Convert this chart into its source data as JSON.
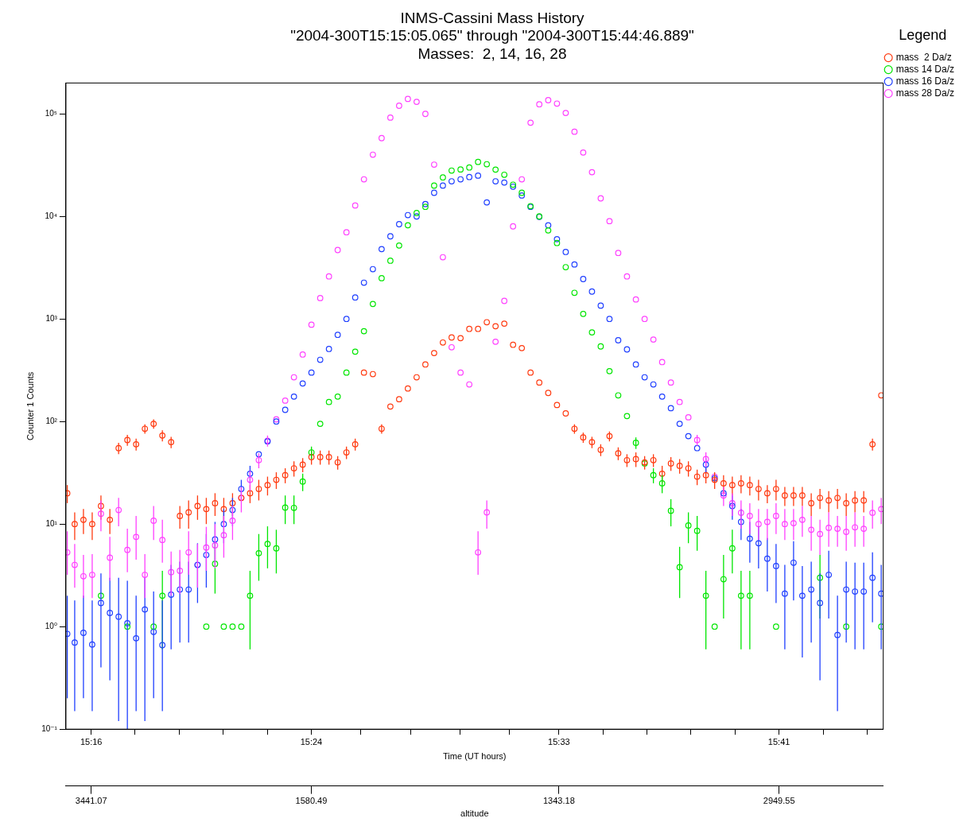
{
  "chart_data": {
    "type": "scatter",
    "title": "INMS-Cassini Mass History",
    "subtitle": "\"2004-300T15:15:05.065\" through \"2004-300T15:44:46.889\"\nMasses:  2, 14, 16, 28",
    "xlabel": "Time (UT hours)",
    "ylabel": "Counter 1 Counts",
    "x2label": "altitude",
    "legend_title": "Legend",
    "log": "y",
    "grid": false,
    "legend": "top right",
    "marker": "circle",
    "xlim": [
      15.2514,
      15.7464
    ],
    "ylim": [
      0.1,
      200000
    ],
    "xticks": [
      {
        "value": 15.2667,
        "label": "15:16"
      },
      {
        "value": 15.2933,
        "label": null
      },
      {
        "value": 15.32,
        "label": null
      },
      {
        "value": 15.3467,
        "label": null
      },
      {
        "value": 15.3733,
        "label": null
      },
      {
        "value": 15.4,
        "label": "15:24"
      },
      {
        "value": 15.43,
        "label": null
      },
      {
        "value": 15.46,
        "label": null
      },
      {
        "value": 15.49,
        "label": null
      },
      {
        "value": 15.52,
        "label": null
      },
      {
        "value": 15.55,
        "label": "15:33"
      },
      {
        "value": 15.5767,
        "label": null
      },
      {
        "value": 15.6033,
        "label": null
      },
      {
        "value": 15.63,
        "label": null
      },
      {
        "value": 15.6567,
        "label": null
      },
      {
        "value": 15.6833,
        "label": "15:41"
      },
      {
        "value": 15.71,
        "label": null
      },
      {
        "value": 15.7367,
        "label": null
      }
    ],
    "annotations": [
      "3441.07",
      "1580.49",
      "1343.18",
      "2949.55"
    ],
    "yticks": [
      {
        "value": 0.1,
        "label": "10⁻¹"
      },
      {
        "value": 1,
        "label": "10⁰"
      },
      {
        "value": 10,
        "label": "10¹"
      },
      {
        "value": 100,
        "label": "10²"
      },
      {
        "value": 1000,
        "label": "10³"
      },
      {
        "value": 10000,
        "label": "10⁴"
      },
      {
        "value": 100000,
        "label": "10⁵"
      }
    ],
    "x": [
      15.2522,
      15.2567,
      15.262,
      15.2673,
      15.2726,
      15.278,
      15.2833,
      15.2886,
      15.2939,
      15.2992,
      15.3045,
      15.3098,
      15.3151,
      15.3204,
      15.3257,
      15.3311,
      15.3364,
      15.3417,
      15.347,
      15.3523,
      15.3576,
      15.3629,
      15.3682,
      15.3735,
      15.3788,
      15.3842,
      15.3895,
      15.3948,
      15.4001,
      15.4054,
      15.4107,
      15.416,
      15.4213,
      15.4266,
      15.4319,
      15.4373,
      15.4426,
      15.4479,
      15.4532,
      15.4585,
      15.4638,
      15.4691,
      15.4744,
      15.4797,
      15.485,
      15.4904,
      15.4957,
      15.501,
      15.5063,
      15.5116,
      15.5169,
      15.5222,
      15.5275,
      15.5328,
      15.5381,
      15.5435,
      15.5488,
      15.5541,
      15.5594,
      15.5647,
      15.57,
      15.5753,
      15.5806,
      15.5859,
      15.5912,
      15.5966,
      15.6019,
      15.6072,
      15.6125,
      15.6178,
      15.6231,
      15.6284,
      15.6337,
      15.639,
      15.6443,
      15.6497,
      15.655,
      15.6603,
      15.6656,
      15.6709,
      15.6762,
      15.6815,
      15.6868,
      15.6921,
      15.6974,
      15.7028,
      15.7081,
      15.7134,
      15.7187,
      15.724,
      15.7293,
      15.7346,
      15.7399,
      15.7452
    ],
    "series": [
      {
        "name": "mass  2 Da/z",
        "color": "#ff3a10",
        "values": [
          20,
          10,
          11,
          10,
          15,
          11,
          55,
          66,
          60,
          85,
          95,
          73,
          63,
          12,
          13,
          15,
          14,
          16,
          14,
          16,
          18,
          20,
          22,
          24,
          27,
          30,
          35,
          38,
          45,
          45,
          45,
          40,
          50,
          60,
          300,
          290,
          85,
          140,
          165,
          210,
          270,
          360,
          465,
          590,
          660,
          650,
          800,
          800,
          930,
          850,
          900,
          560,
          520,
          300,
          240,
          190,
          145,
          120,
          85,
          70,
          63,
          53,
          72,
          49,
          42,
          43,
          40,
          42,
          31,
          39,
          37,
          35,
          29,
          30,
          27,
          25,
          24,
          25,
          24,
          22,
          20,
          22,
          19,
          19,
          19,
          16,
          18,
          17,
          18,
          16,
          17,
          17,
          60,
          180
        ],
        "errors": [
          [
            16,
            24
          ],
          [
            7,
            13
          ],
          [
            8,
            14
          ],
          [
            7,
            13
          ],
          [
            11,
            19
          ],
          [
            8,
            14
          ],
          [
            48,
            62
          ],
          [
            58,
            74
          ],
          [
            52,
            68
          ],
          [
            76,
            94
          ],
          [
            85,
            105
          ],
          [
            64,
            82
          ],
          [
            55,
            71
          ],
          [
            9,
            15
          ],
          [
            9,
            17
          ],
          [
            11,
            19
          ],
          [
            10,
            18
          ],
          [
            12,
            20
          ],
          [
            10,
            18
          ],
          [
            12,
            20
          ],
          null,
          [
            16,
            24
          ],
          [
            17,
            27
          ],
          [
            19,
            29
          ],
          [
            22,
            32
          ],
          [
            25,
            35
          ],
          [
            29,
            41
          ],
          [
            32,
            44
          ],
          [
            38,
            52
          ],
          [
            38,
            52
          ],
          [
            38,
            52
          ],
          [
            34,
            46
          ],
          [
            43,
            57
          ],
          [
            52,
            68
          ],
          null,
          null,
          [
            76,
            94
          ],
          null,
          null,
          null,
          null,
          null,
          null,
          null,
          null,
          null,
          null,
          null,
          null,
          null,
          null,
          null,
          null,
          null,
          null,
          null,
          null,
          null,
          [
            76,
            94
          ],
          [
            62,
            78
          ],
          [
            55,
            71
          ],
          [
            46,
            60
          ],
          [
            64,
            80
          ],
          [
            42,
            56
          ],
          [
            36,
            48
          ],
          [
            36,
            50
          ],
          [
            34,
            46
          ],
          [
            36,
            48
          ],
          [
            25,
            37
          ],
          [
            33,
            45
          ],
          [
            31,
            43
          ],
          [
            29,
            41
          ],
          [
            24,
            34
          ],
          [
            25,
            35
          ],
          [
            22,
            32
          ],
          [
            20,
            30
          ],
          [
            19,
            29
          ],
          [
            20,
            30
          ],
          [
            19,
            29
          ],
          [
            17,
            27
          ],
          [
            16,
            24
          ],
          [
            17,
            27
          ],
          [
            15,
            23
          ],
          [
            15,
            23
          ],
          [
            15,
            23
          ],
          [
            12,
            20
          ],
          [
            14,
            22
          ],
          [
            13,
            21
          ],
          [
            14,
            22
          ],
          [
            12,
            20
          ],
          [
            13,
            21
          ],
          [
            13,
            21
          ],
          [
            52,
            68
          ],
          null
        ]
      },
      {
        "name": "mass 14 Da/z",
        "color": "#00e600",
        "values": [
          null,
          null,
          null,
          null,
          2,
          null,
          null,
          1,
          null,
          null,
          1,
          2,
          null,
          null,
          null,
          null,
          1,
          4.1,
          1,
          1,
          1,
          2,
          5.2,
          6.4,
          5.8,
          14.5,
          14.4,
          26,
          50,
          95,
          155,
          175,
          300,
          480,
          760,
          1400,
          2500,
          3700,
          5200,
          8200,
          10800,
          12400,
          20000,
          24000,
          28000,
          28700,
          30000,
          34000,
          32300,
          28600,
          25500,
          20400,
          17000,
          12600,
          10000,
          7300,
          5500,
          3200,
          1800,
          1120,
          740,
          540,
          310,
          180,
          113,
          62,
          39,
          30,
          25,
          13.5,
          3.8,
          9.7,
          8.6,
          2,
          1,
          2.9,
          5.8,
          2,
          2,
          null,
          null,
          1,
          null,
          null,
          null,
          null,
          3,
          null,
          null,
          1,
          null,
          null,
          null,
          1
        ],
        "errors": [
          null,
          null,
          null,
          null,
          null,
          null,
          null,
          null,
          null,
          null,
          null,
          [
            0.6,
            3.5
          ],
          null,
          null,
          null,
          null,
          null,
          [
            2.1,
            6.5
          ],
          null,
          null,
          null,
          [
            0.6,
            3.5
          ],
          [
            2.8,
            8
          ],
          [
            3.7,
            9.5
          ],
          [
            3.3,
            8.8
          ],
          [
            10,
            19
          ],
          [
            10,
            19
          ],
          [
            21,
            31
          ],
          [
            43,
            57
          ],
          null,
          null,
          null,
          null,
          null,
          null,
          null,
          null,
          null,
          null,
          null,
          null,
          null,
          null,
          null,
          null,
          null,
          null,
          null,
          null,
          null,
          null,
          null,
          null,
          null,
          null,
          null,
          null,
          null,
          null,
          null,
          null,
          null,
          null,
          null,
          null,
          [
            54,
            70
          ],
          null,
          [
            25,
            35
          ],
          [
            20,
            30
          ],
          [
            9.5,
            17.5
          ],
          [
            1.9,
            6
          ],
          [
            6.5,
            13
          ],
          [
            5.5,
            12
          ],
          [
            0.6,
            3.5
          ],
          null,
          [
            1.2,
            5
          ],
          [
            3.3,
            8.8
          ],
          [
            0.6,
            3.5
          ],
          [
            0.6,
            3.5
          ],
          null,
          null,
          null,
          null,
          null,
          null,
          null,
          [
            1.2,
            5
          ],
          null,
          null,
          null,
          null,
          null,
          null,
          null
        ]
      },
      {
        "name": "mass 16 Da/z",
        "color": "#1f3fff",
        "values": [
          0.85,
          0.7,
          0.87,
          0.67,
          1.7,
          1.36,
          1.25,
          1.08,
          0.77,
          1.47,
          0.89,
          0.66,
          2.05,
          2.3,
          2.3,
          4,
          5,
          7.1,
          10,
          13.7,
          22,
          31,
          48,
          64,
          100,
          130,
          175,
          235,
          300,
          400,
          510,
          700,
          1000,
          1620,
          2260,
          3060,
          4800,
          6400,
          8400,
          10300,
          10000,
          13200,
          17000,
          20000,
          22000,
          23000,
          24200,
          25000,
          13700,
          22000,
          21400,
          19500,
          16000,
          12400,
          9900,
          8200,
          6000,
          4500,
          3400,
          2450,
          1850,
          1350,
          1000,
          620,
          505,
          360,
          270,
          230,
          175,
          135,
          95,
          72,
          55,
          38,
          28,
          20,
          15,
          10.5,
          7.2,
          6.5,
          4.6,
          3.9,
          2.1,
          4.2,
          2,
          2.3,
          1.7,
          3.2,
          0.83,
          2.3,
          2.2,
          2.2,
          3,
          2.1
        ],
        "errors": [
          [
            0.2,
            2
          ],
          [
            0.15,
            1.8
          ],
          [
            0.2,
            2
          ],
          [
            0.15,
            1.8
          ],
          [
            0.4,
            3.3
          ],
          [
            0.3,
            3
          ],
          [
            0.12,
            3
          ],
          [
            0.1,
            2.8
          ],
          [
            0.15,
            2
          ],
          [
            0.12,
            3
          ],
          [
            0.2,
            2.2
          ],
          [
            0.15,
            1.8
          ],
          [
            0.6,
            4
          ],
          [
            0.7,
            4.3
          ],
          [
            0.7,
            4.3
          ],
          [
            1.7,
            6.5
          ],
          [
            2.4,
            8
          ],
          [
            4,
            10.5
          ],
          [
            6.5,
            14
          ],
          [
            9.5,
            18
          ],
          [
            17,
            27
          ],
          [
            25,
            37
          ],
          null,
          null,
          null,
          null,
          null,
          null,
          null,
          null,
          null,
          null,
          null,
          null,
          null,
          null,
          null,
          null,
          null,
          null,
          null,
          null,
          null,
          null,
          null,
          null,
          null,
          null,
          null,
          null,
          null,
          null,
          null,
          null,
          null,
          null,
          null,
          null,
          null,
          null,
          null,
          null,
          null,
          null,
          null,
          null,
          null,
          null,
          null,
          null,
          null,
          null,
          null,
          [
            32,
            44
          ],
          null,
          null,
          [
            11,
            19
          ],
          [
            7,
            14
          ],
          [
            4.2,
            10.5
          ],
          [
            3.7,
            9.5
          ],
          [
            2.2,
            7.3
          ],
          [
            1.7,
            6.4
          ],
          [
            0.6,
            4
          ],
          [
            1.8,
            6.8
          ],
          [
            0.5,
            3.9
          ],
          [
            0.7,
            4.3
          ],
          [
            0.3,
            3.3
          ],
          [
            1.2,
            5.5
          ],
          [
            0.15,
            2
          ],
          [
            0.7,
            4.3
          ],
          [
            0.6,
            4.2
          ],
          [
            0.6,
            4.2
          ],
          [
            1.1,
            5.3
          ],
          [
            0.6,
            4
          ]
        ]
      },
      {
        "name": "mass 28 Da/z",
        "color": "#ff40ff",
        "values": [
          5.3,
          4,
          3.1,
          3.2,
          12.6,
          4.7,
          13.7,
          5.6,
          7.5,
          3.2,
          10.8,
          7,
          3.4,
          3.5,
          5.3,
          4,
          5.9,
          6.2,
          7.8,
          10.8,
          18,
          27,
          42,
          65,
          105,
          160,
          270,
          450,
          880,
          1600,
          2600,
          4700,
          7000,
          12800,
          23000,
          40000,
          58000,
          92000,
          120000,
          140000,
          131000,
          100000,
          32000,
          4000,
          530,
          300,
          230,
          5.3,
          13,
          600,
          1500,
          8000,
          23000,
          82000,
          124000,
          136000,
          126000,
          102000,
          67000,
          42000,
          27000,
          15000,
          9000,
          4400,
          2600,
          1550,
          1000,
          630,
          380,
          240,
          155,
          110,
          66,
          43,
          29,
          19,
          16,
          12.9,
          12,
          10,
          10.5,
          12,
          10,
          10.2,
          11,
          8.8,
          8,
          9.2,
          9,
          8.4,
          9.3,
          9,
          12.9,
          14
        ],
        "errors": [
          [
            3.2,
            8.5
          ],
          [
            2.4,
            6.4
          ],
          [
            1.9,
            5
          ],
          [
            1.9,
            5.1
          ],
          [
            8.5,
            17
          ],
          [
            2.8,
            7.5
          ],
          [
            9.5,
            18
          ],
          [
            3.4,
            9
          ],
          [
            4.5,
            12
          ],
          [
            1.9,
            5.1
          ],
          [
            7,
            15
          ],
          [
            4.2,
            11
          ],
          [
            2,
            5.4
          ],
          [
            2.1,
            5.6
          ],
          [
            3.2,
            8.5
          ],
          [
            2.4,
            6.4
          ],
          [
            3.5,
            9.4
          ],
          [
            3.7,
            10
          ],
          [
            4.7,
            12
          ],
          [
            7,
            15
          ],
          [
            13,
            23
          ],
          [
            21,
            33
          ],
          [
            35,
            49
          ],
          [
            57,
            73
          ],
          null,
          null,
          null,
          null,
          null,
          null,
          null,
          null,
          null,
          null,
          null,
          null,
          null,
          null,
          null,
          null,
          null,
          null,
          null,
          null,
          null,
          null,
          null,
          [
            3.2,
            8.5
          ],
          [
            9,
            17
          ],
          null,
          null,
          null,
          null,
          null,
          null,
          null,
          null,
          null,
          null,
          null,
          null,
          null,
          null,
          null,
          null,
          null,
          null,
          null,
          null,
          null,
          null,
          null,
          [
            58,
            74
          ],
          [
            36,
            50
          ],
          null,
          [
            15,
            23
          ],
          [
            12,
            20
          ],
          [
            9,
            17
          ],
          [
            8,
            16
          ],
          [
            7,
            14
          ],
          [
            7,
            14
          ],
          [
            8,
            16
          ],
          [
            7,
            14
          ],
          [
            7,
            14
          ],
          [
            7.5,
            15
          ],
          [
            5.5,
            12
          ],
          [
            5,
            11
          ],
          [
            6,
            13
          ],
          [
            6,
            12
          ],
          [
            5.5,
            12
          ],
          [
            6,
            13
          ],
          [
            6,
            12
          ],
          [
            9,
            17
          ],
          [
            10,
            18
          ]
        ]
      }
    ]
  }
}
